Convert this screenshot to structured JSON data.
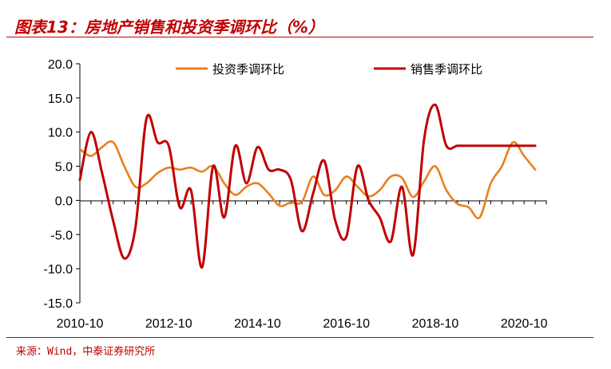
{
  "header": {
    "title": "图表13：房地产销售和投资季调环比（%）"
  },
  "footer": {
    "source": "来源：Wind，中泰证券研究所"
  },
  "colors": {
    "accent": "#c00000",
    "investment": "#e8801e",
    "sales": "#c00000"
  },
  "chart_data": {
    "type": "line",
    "title": "",
    "xlabel": "",
    "ylabel": "",
    "ylim": [
      -15,
      20
    ],
    "yticks": [
      "20.0",
      "15.0",
      "10.0",
      "5.0",
      "0.0",
      "-5.0",
      "-10.0",
      "-15.0"
    ],
    "xticks": [
      "2010-10",
      "2012-10",
      "2014-10",
      "2016-10",
      "2018-10",
      "2020-10"
    ],
    "x_start": "2010-10",
    "x_end": "2021-04",
    "grid": false,
    "legend": "top",
    "series": [
      {
        "name": "投资季调环比",
        "color_key": "investment",
        "x": [
          "2010-10",
          "2011-01",
          "2011-04",
          "2011-07",
          "2011-10",
          "2012-01",
          "2012-04",
          "2012-07",
          "2012-10",
          "2013-01",
          "2013-04",
          "2013-07",
          "2013-10",
          "2014-01",
          "2014-04",
          "2014-07",
          "2014-10",
          "2015-01",
          "2015-04",
          "2015-07",
          "2015-10",
          "2016-01",
          "2016-04",
          "2016-07",
          "2016-10",
          "2017-01",
          "2017-04",
          "2017-07",
          "2017-10",
          "2018-01",
          "2018-04",
          "2018-07",
          "2018-10",
          "2019-01",
          "2019-04",
          "2019-07",
          "2019-10",
          "2020-01",
          "2020-04",
          "2020-07",
          "2020-10",
          "2021-01"
        ],
        "values": [
          7.5,
          6.5,
          7.8,
          8.5,
          5.0,
          2.0,
          2.5,
          4.0,
          4.8,
          4.5,
          4.8,
          4.2,
          5.0,
          2.5,
          0.8,
          2.0,
          2.5,
          1.0,
          -0.8,
          -0.3,
          -0.2,
          3.5,
          0.8,
          1.5,
          3.5,
          2.0,
          0.6,
          1.5,
          3.5,
          3.3,
          0.5,
          2.8,
          5.0,
          1.5,
          -0.5,
          -1.0,
          -2.5,
          2.5,
          5.0,
          8.5,
          6.5,
          4.5
        ]
      },
      {
        "name": "销售季调环比",
        "color_key": "sales",
        "x": [
          "2010-10",
          "2011-01",
          "2011-04",
          "2011-07",
          "2011-10",
          "2012-01",
          "2012-04",
          "2012-07",
          "2012-10",
          "2013-01",
          "2013-04",
          "2013-07",
          "2013-10",
          "2014-01",
          "2014-04",
          "2014-07",
          "2014-10",
          "2015-01",
          "2015-04",
          "2015-07",
          "2015-10",
          "2016-01",
          "2016-04",
          "2016-07",
          "2016-10",
          "2017-01",
          "2017-04",
          "2017-07",
          "2017-10",
          "2018-01",
          "2018-04",
          "2018-07",
          "2018-10",
          "2019-01",
          "2019-04",
          "2019-07",
          "2019-10",
          "2020-01",
          "2020-04",
          "2020-07",
          "2020-10",
          "2021-01"
        ],
        "values": [
          3.0,
          10.0,
          4.0,
          -3.0,
          -8.5,
          -4.0,
          12.0,
          8.5,
          8.0,
          -1.0,
          1.5,
          -9.8,
          5.0,
          -2.5,
          8.0,
          2.5,
          7.8,
          4.5,
          4.5,
          3.0,
          -4.5,
          1.0,
          5.8,
          -3.0,
          -5.3,
          5.0,
          0.0,
          -2.5,
          -6.0,
          2.0,
          -8.0,
          9.0,
          14.0,
          8.0,
          8.0,
          8.0,
          8.0,
          8.0,
          8.0,
          8.0,
          8.0,
          8.0
        ]
      }
    ]
  }
}
